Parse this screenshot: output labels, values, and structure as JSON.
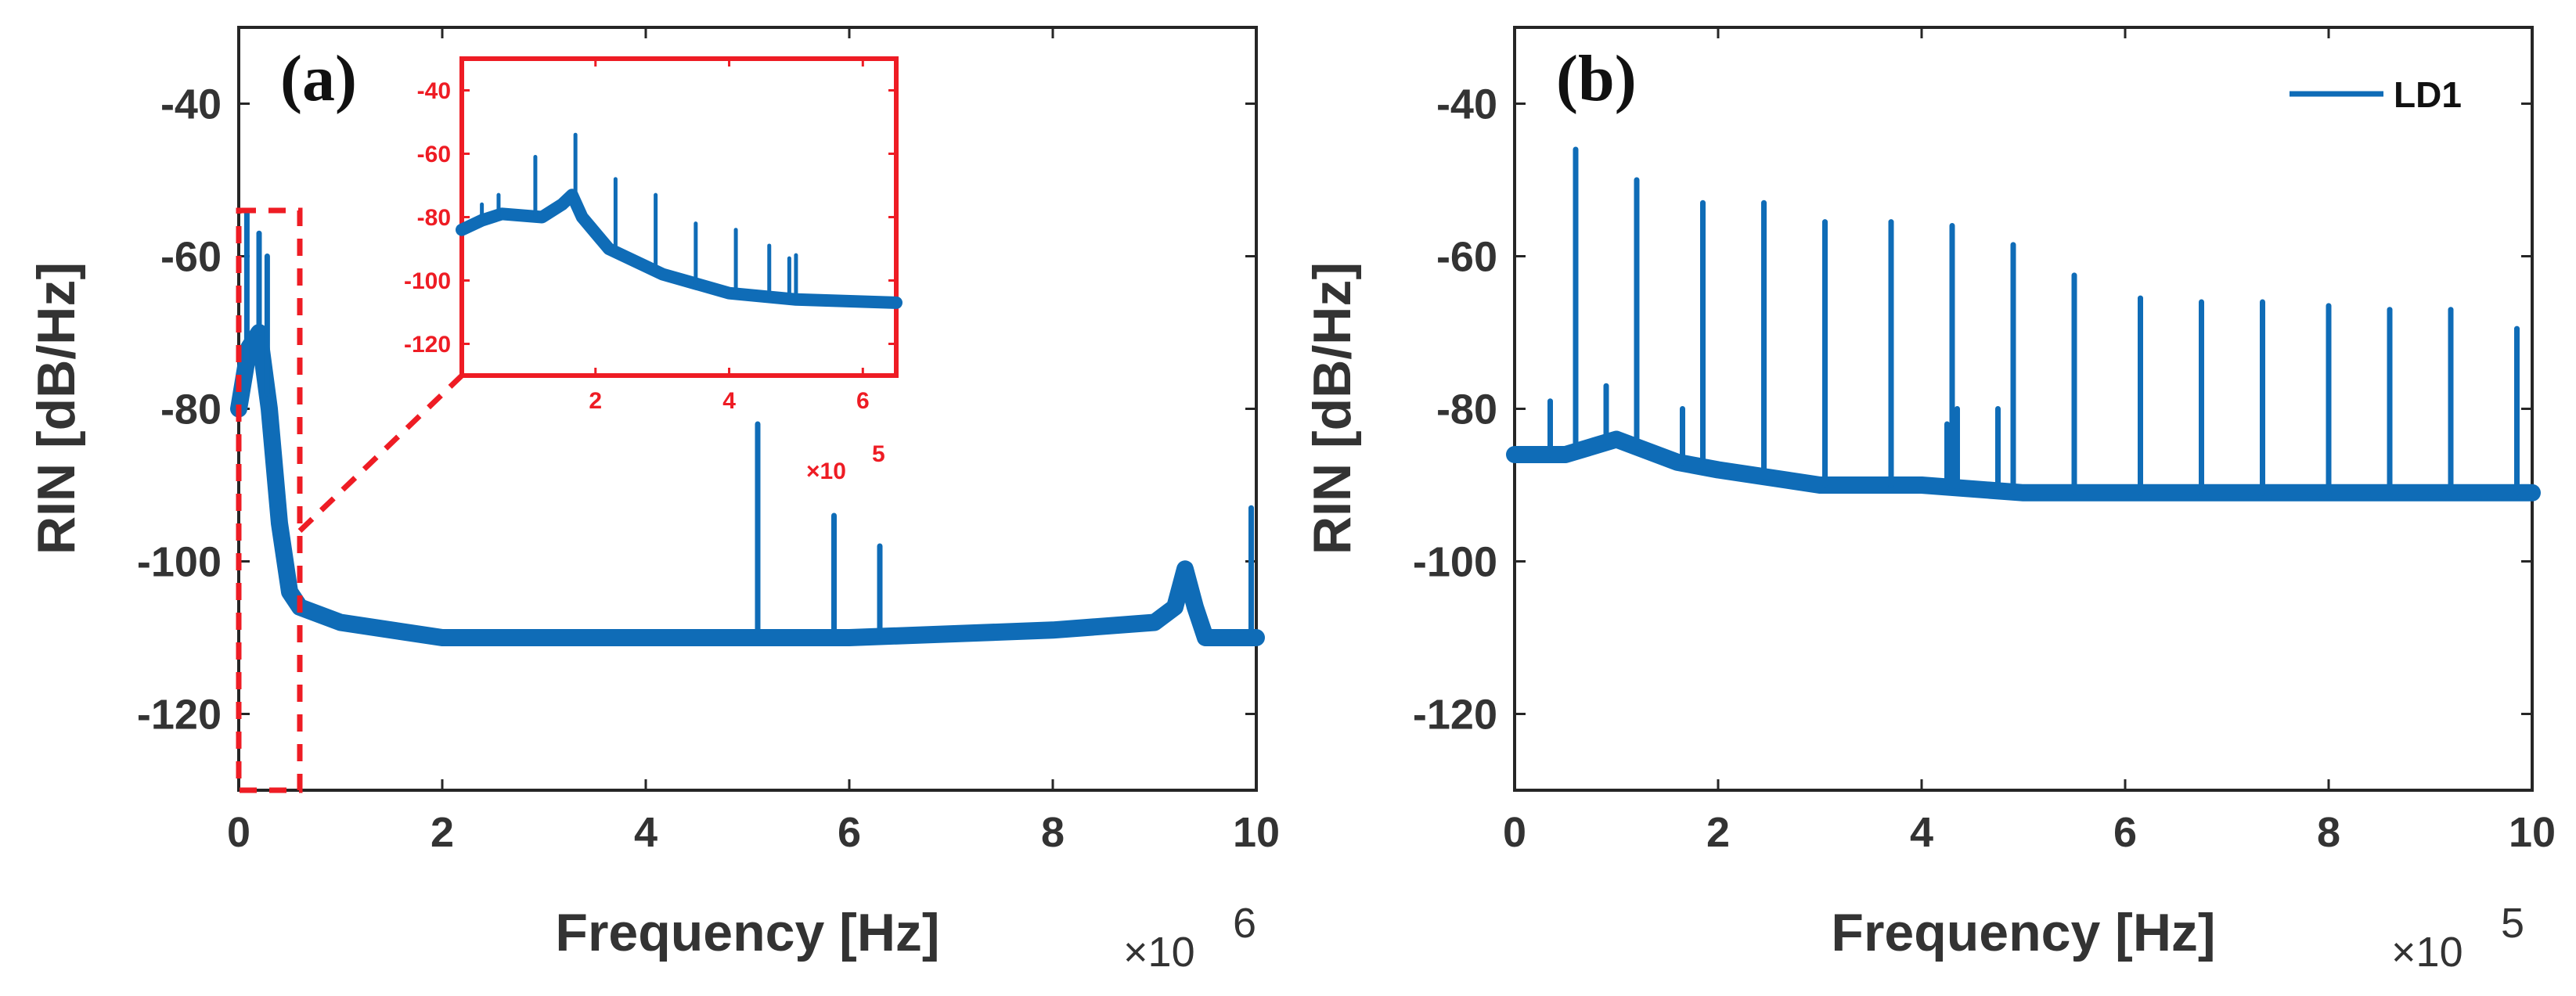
{
  "colors": {
    "series": "#0f6cb7",
    "inset_accent": "#ee1c24",
    "axis": "#262626"
  },
  "chart_data": [
    {
      "panel_label": "(a)",
      "type": "line",
      "xlabel": "Frequency [Hz]",
      "ylabel": "RIN [dB/Hz]",
      "x_multiplier": "×10",
      "x_exponent": "6",
      "xlim": [
        0,
        10
      ],
      "ylim": [
        -130,
        -30
      ],
      "xticks": [
        "0",
        "2",
        "4",
        "6",
        "8",
        "10"
      ],
      "yticks": [
        "-40",
        "-60",
        "-80",
        "-100",
        "-120"
      ],
      "series": [
        {
          "name": "LD1",
          "baseline": [
            [
              0,
              -80
            ],
            [
              0.1,
              -72
            ],
            [
              0.2,
              -70
            ],
            [
              0.3,
              -80
            ],
            [
              0.4,
              -95
            ],
            [
              0.5,
              -104
            ],
            [
              0.6,
              -106
            ],
            [
              1,
              -108
            ],
            [
              2,
              -110
            ],
            [
              4,
              -110
            ],
            [
              6,
              -110
            ],
            [
              8,
              -109
            ],
            [
              9,
              -108
            ],
            [
              9.2,
              -106
            ],
            [
              9.3,
              -101
            ],
            [
              9.4,
              -106
            ],
            [
              9.5,
              -110
            ],
            [
              10,
              -110
            ]
          ],
          "spikes": [
            [
              0.08,
              -54
            ],
            [
              0.2,
              -57
            ],
            [
              0.28,
              -60
            ],
            [
              5.1,
              -82
            ],
            [
              5.85,
              -94
            ],
            [
              6.3,
              -98
            ],
            [
              9.95,
              -93
            ]
          ]
        }
      ],
      "zoom_box": {
        "x": [
          0,
          0.6
        ],
        "y": [
          -130,
          -54
        ]
      },
      "inset": {
        "xlim": [
          0,
          6.5
        ],
        "ylim": [
          -130,
          -30
        ],
        "xticks": [
          "2",
          "4",
          "6"
        ],
        "yticks": [
          "-40",
          "-60",
          "-80",
          "-100",
          "-120"
        ],
        "x_multiplier": "×10",
        "x_exponent": "5",
        "baseline": [
          [
            0,
            -84
          ],
          [
            0.3,
            -81
          ],
          [
            0.6,
            -79
          ],
          [
            1.2,
            -80
          ],
          [
            1.5,
            -76
          ],
          [
            1.65,
            -73
          ],
          [
            1.8,
            -80
          ],
          [
            2.2,
            -90
          ],
          [
            3,
            -98
          ],
          [
            4,
            -104
          ],
          [
            5,
            -106
          ],
          [
            6.5,
            -107
          ]
        ],
        "spikes": [
          [
            0.3,
            -76
          ],
          [
            0.55,
            -73
          ],
          [
            1.1,
            -61
          ],
          [
            1.7,
            -54
          ],
          [
            2.3,
            -68
          ],
          [
            2.9,
            -73
          ],
          [
            3.5,
            -82
          ],
          [
            4.1,
            -84
          ],
          [
            4.6,
            -89
          ],
          [
            4.9,
            -93
          ],
          [
            5.0,
            -92
          ]
        ]
      }
    },
    {
      "panel_label": "(b)",
      "type": "line",
      "xlabel": "Frequency [Hz]",
      "ylabel": "RIN [dB/Hz]",
      "x_multiplier": "×10",
      "x_exponent": "5",
      "xlim": [
        0,
        10
      ],
      "ylim": [
        -130,
        -30
      ],
      "xticks": [
        "0",
        "2",
        "4",
        "6",
        "8",
        "10"
      ],
      "yticks": [
        "-40",
        "-60",
        "-80",
        "-100",
        "-120"
      ],
      "legend": {
        "label": "LD1",
        "placement": "top-right"
      },
      "series": [
        {
          "name": "LD1",
          "baseline": [
            [
              0,
              -86
            ],
            [
              0.5,
              -86
            ],
            [
              1,
              -84
            ],
            [
              1.6,
              -87
            ],
            [
              2,
              -88
            ],
            [
              3,
              -90
            ],
            [
              4,
              -90
            ],
            [
              5,
              -91
            ],
            [
              6,
              -91
            ],
            [
              8,
              -91
            ],
            [
              10,
              -91
            ]
          ],
          "spikes": [
            [
              0.6,
              -46
            ],
            [
              1.2,
              -50
            ],
            [
              1.85,
              -53
            ],
            [
              2.45,
              -53
            ],
            [
              3.05,
              -55.5
            ],
            [
              3.7,
              -55.5
            ],
            [
              4.3,
              -56
            ],
            [
              4.9,
              -58.5
            ],
            [
              5.5,
              -62.5
            ],
            [
              6.15,
              -65.5
            ],
            [
              6.75,
              -66
            ],
            [
              7.35,
              -66
            ],
            [
              8,
              -66.5
            ],
            [
              8.6,
              -67
            ],
            [
              9.2,
              -67
            ],
            [
              9.85,
              -69.5
            ],
            [
              0.35,
              -79
            ],
            [
              0.9,
              -77
            ],
            [
              1.65,
              -80
            ],
            [
              3.7,
              -82
            ],
            [
              4.25,
              -82
            ],
            [
              4.35,
              -80
            ],
            [
              4.75,
              -80
            ]
          ]
        }
      ]
    }
  ]
}
